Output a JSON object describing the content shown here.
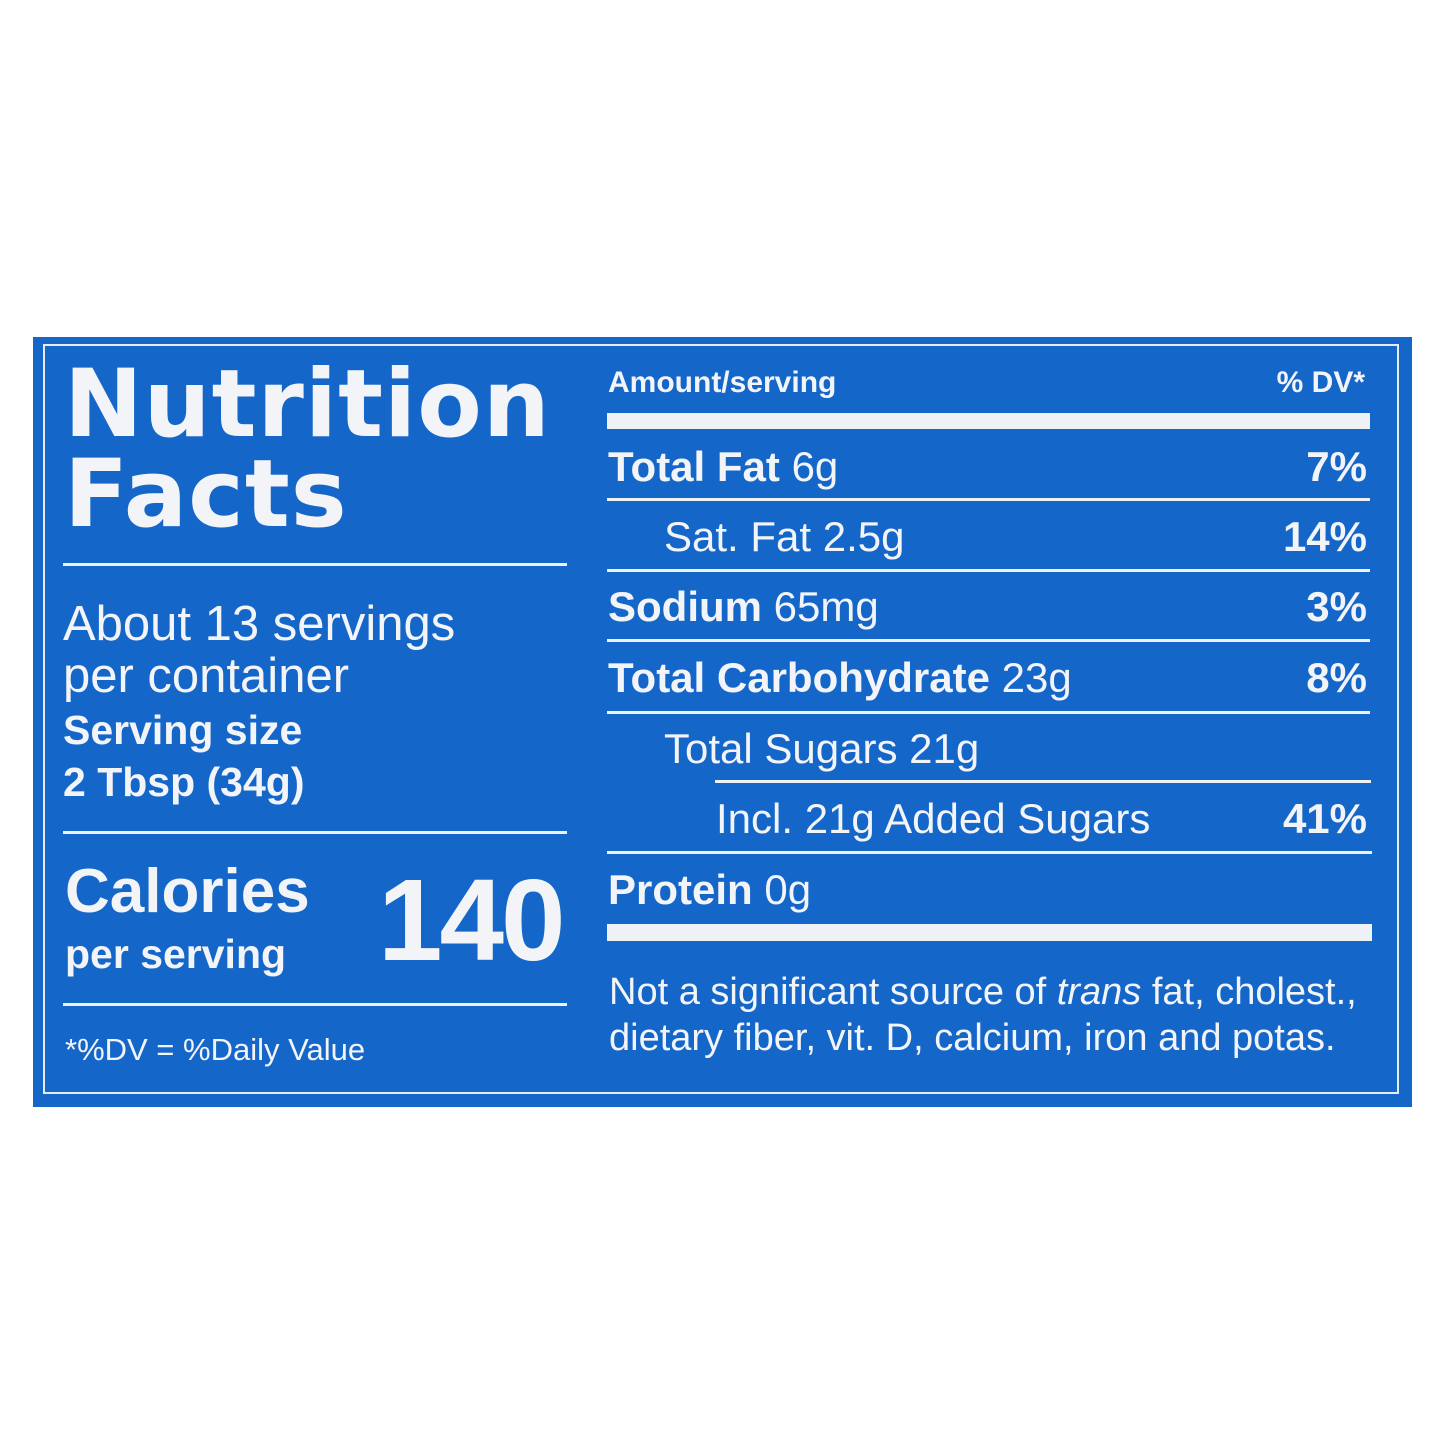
{
  "left": {
    "title_line1": "Nutrition",
    "title_line2": "Facts",
    "servings_line1": "About 13 servings",
    "servings_line2": "per container",
    "serving_size_label": "Serving size",
    "serving_size_value": "2 Tbsp (34g)",
    "calories_label": "Calories",
    "calories_sub": "per serving",
    "calories_value": "140",
    "footnote": "*%DV = %Daily Value"
  },
  "right": {
    "header_amount": "Amount/serving",
    "header_dv": "% DV*",
    "rows": [
      {
        "name": "Total Fat",
        "amount": "6g",
        "dv": "7%"
      },
      {
        "name": "Sat. Fat",
        "amount": "2.5g",
        "dv": "14%"
      },
      {
        "name": "Sodium",
        "amount": "65mg",
        "dv": "3%"
      },
      {
        "name": "Total Carbohydrate",
        "amount": "23g",
        "dv": "8%"
      },
      {
        "name": "Total Sugars",
        "amount": "21g",
        "dv": ""
      },
      {
        "name": "Incl. 21g Added Sugars",
        "amount": "",
        "dv": "41%"
      },
      {
        "name": "Protein",
        "amount": "0g",
        "dv": ""
      }
    ],
    "note_part1": "Not a significant source of ",
    "note_italic": "trans",
    "note_part2": " fat, cholest.,",
    "note_line2": "dietary fiber, vit. D, calcium, iron and potas."
  },
  "colors": {
    "background": "#1566c9",
    "text": "#f2f4f7"
  }
}
